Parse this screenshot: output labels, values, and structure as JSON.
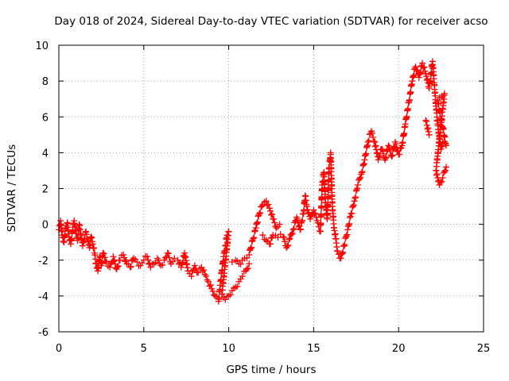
{
  "chart_data": {
    "type": "scatter",
    "title": "Day 018 of 2024, Sidereal Day-to-day VTEC variation (SDTVAR) for receiver acso",
    "xlabel": "GPS time / hours",
    "ylabel": "SDTVAR / TECUs",
    "xlim": [
      0,
      25
    ],
    "ylim": [
      -6,
      10
    ],
    "xticks": [
      0,
      5,
      10,
      15,
      20,
      25
    ],
    "yticks": [
      -6,
      -4,
      -2,
      0,
      2,
      4,
      6,
      8,
      10
    ],
    "grid": true,
    "marker": "+",
    "color": "#ff0000",
    "series": [
      {
        "name": "SDTVAR",
        "points": [
          [
            0.0,
            -0.3
          ],
          [
            0.1,
            0.2
          ],
          [
            0.2,
            -0.6
          ],
          [
            0.3,
            -1.0
          ],
          [
            0.4,
            -0.2
          ],
          [
            0.5,
            0.1
          ],
          [
            0.6,
            -0.7
          ],
          [
            0.7,
            -1.1
          ],
          [
            0.8,
            -0.4
          ],
          [
            0.9,
            0.2
          ],
          [
            1.0,
            -0.5
          ],
          [
            1.1,
            -0.9
          ],
          [
            1.2,
            0.0
          ],
          [
            1.3,
            -0.6
          ],
          [
            1.4,
            -1.2
          ],
          [
            1.5,
            -0.8
          ],
          [
            1.6,
            -0.4
          ],
          [
            1.7,
            -0.9
          ],
          [
            1.8,
            -1.3
          ],
          [
            1.9,
            -0.7
          ],
          [
            2.0,
            -1.1
          ],
          [
            2.1,
            -1.6
          ],
          [
            2.2,
            -2.2
          ],
          [
            2.3,
            -2.6
          ],
          [
            2.4,
            -1.8
          ],
          [
            2.5,
            -2.3
          ],
          [
            2.6,
            -1.6
          ],
          [
            2.8,
            -2.1
          ],
          [
            3.0,
            -2.4
          ],
          [
            3.2,
            -1.8
          ],
          [
            3.4,
            -2.5
          ],
          [
            3.6,
            -2.0
          ],
          [
            3.8,
            -1.7
          ],
          [
            4.0,
            -2.2
          ],
          [
            4.2,
            -2.4
          ],
          [
            4.4,
            -1.9
          ],
          [
            4.6,
            -2.1
          ],
          [
            4.8,
            -2.3
          ],
          [
            5.0,
            -2.0
          ],
          [
            5.2,
            -1.8
          ],
          [
            5.4,
            -2.4
          ],
          [
            5.6,
            -2.2
          ],
          [
            5.8,
            -1.9
          ],
          [
            6.0,
            -2.3
          ],
          [
            6.2,
            -2.0
          ],
          [
            6.4,
            -1.6
          ],
          [
            6.6,
            -2.2
          ],
          [
            6.8,
            -1.9
          ],
          [
            7.0,
            -2.0
          ],
          [
            7.2,
            -2.4
          ],
          [
            7.4,
            -1.6
          ],
          [
            7.6,
            -2.6
          ],
          [
            7.8,
            -2.9
          ],
          [
            8.0,
            -2.3
          ],
          [
            8.2,
            -2.7
          ],
          [
            8.4,
            -2.4
          ],
          [
            8.6,
            -2.8
          ],
          [
            8.8,
            -3.2
          ],
          [
            9.0,
            -3.6
          ],
          [
            9.2,
            -4.0
          ],
          [
            9.4,
            -4.3
          ],
          [
            9.5,
            -3.4
          ],
          [
            9.6,
            -2.6
          ],
          [
            9.7,
            -1.8
          ],
          [
            9.8,
            -1.2
          ],
          [
            9.9,
            -0.6
          ],
          [
            10.0,
            -0.4
          ],
          [
            9.6,
            -3.9
          ],
          [
            9.8,
            -4.2
          ],
          [
            10.0,
            -4.0
          ],
          [
            10.2,
            -3.7
          ],
          [
            10.4,
            -3.5
          ],
          [
            10.6,
            -3.2
          ],
          [
            10.8,
            -2.9
          ],
          [
            11.0,
            -2.6
          ],
          [
            11.2,
            -2.2
          ],
          [
            10.2,
            -2.1
          ],
          [
            10.4,
            -2.0
          ],
          [
            10.6,
            -2.2
          ],
          [
            10.8,
            -2.0
          ],
          [
            11.2,
            -1.7
          ],
          [
            11.4,
            -0.9
          ],
          [
            11.6,
            -0.2
          ],
          [
            11.8,
            0.6
          ],
          [
            12.0,
            1.1
          ],
          [
            12.2,
            1.3
          ],
          [
            12.4,
            0.9
          ],
          [
            12.6,
            0.3
          ],
          [
            12.8,
            -0.2
          ],
          [
            13.0,
            0.0
          ],
          [
            12.0,
            -0.6
          ],
          [
            12.2,
            -0.9
          ],
          [
            12.4,
            -1.1
          ],
          [
            12.6,
            -0.6
          ],
          [
            13.2,
            -0.7
          ],
          [
            13.4,
            -1.3
          ],
          [
            13.6,
            -0.8
          ],
          [
            13.8,
            -0.3
          ],
          [
            14.0,
            0.4
          ],
          [
            14.2,
            -0.3
          ],
          [
            14.4,
            0.6
          ],
          [
            14.5,
            1.6
          ],
          [
            14.6,
            1.0
          ],
          [
            14.8,
            0.3
          ],
          [
            15.0,
            0.8
          ],
          [
            15.2,
            0.2
          ],
          [
            15.4,
            -0.4
          ],
          [
            15.5,
            2.2
          ],
          [
            15.6,
            2.9
          ],
          [
            15.7,
            1.2
          ],
          [
            15.8,
            0.3
          ],
          [
            15.9,
            3.1
          ],
          [
            16.0,
            4.0
          ],
          [
            16.1,
            1.0
          ],
          [
            16.2,
            -0.2
          ],
          [
            16.3,
            -0.8
          ],
          [
            16.4,
            -1.5
          ],
          [
            16.6,
            -1.9
          ],
          [
            16.8,
            -1.2
          ],
          [
            17.0,
            -0.3
          ],
          [
            17.2,
            0.6
          ],
          [
            17.4,
            1.3
          ],
          [
            17.6,
            2.2
          ],
          [
            17.8,
            2.8
          ],
          [
            18.0,
            3.6
          ],
          [
            18.2,
            4.6
          ],
          [
            18.4,
            5.2
          ],
          [
            18.6,
            4.6
          ],
          [
            18.8,
            3.6
          ],
          [
            19.0,
            4.2
          ],
          [
            19.2,
            3.6
          ],
          [
            19.4,
            4.4
          ],
          [
            19.6,
            3.8
          ],
          [
            19.8,
            4.6
          ],
          [
            20.0,
            3.9
          ],
          [
            20.2,
            4.4
          ],
          [
            20.4,
            5.6
          ],
          [
            20.6,
            6.8
          ],
          [
            20.8,
            8.0
          ],
          [
            21.0,
            8.8
          ],
          [
            21.2,
            8.2
          ],
          [
            21.4,
            9.0
          ],
          [
            21.6,
            8.4
          ],
          [
            21.8,
            7.6
          ],
          [
            22.0,
            9.1
          ],
          [
            22.1,
            7.8
          ],
          [
            22.2,
            6.6
          ],
          [
            22.3,
            5.6
          ],
          [
            22.4,
            4.8
          ],
          [
            22.5,
            4.2
          ],
          [
            22.6,
            4.6
          ],
          [
            22.8,
            4.4
          ],
          [
            22.3,
            6.9
          ],
          [
            22.5,
            7.1
          ],
          [
            22.7,
            7.3
          ],
          [
            22.2,
            3.0
          ],
          [
            22.4,
            2.2
          ],
          [
            22.6,
            2.6
          ],
          [
            22.8,
            3.2
          ],
          [
            21.6,
            5.8
          ],
          [
            21.8,
            5.0
          ]
        ]
      }
    ]
  }
}
